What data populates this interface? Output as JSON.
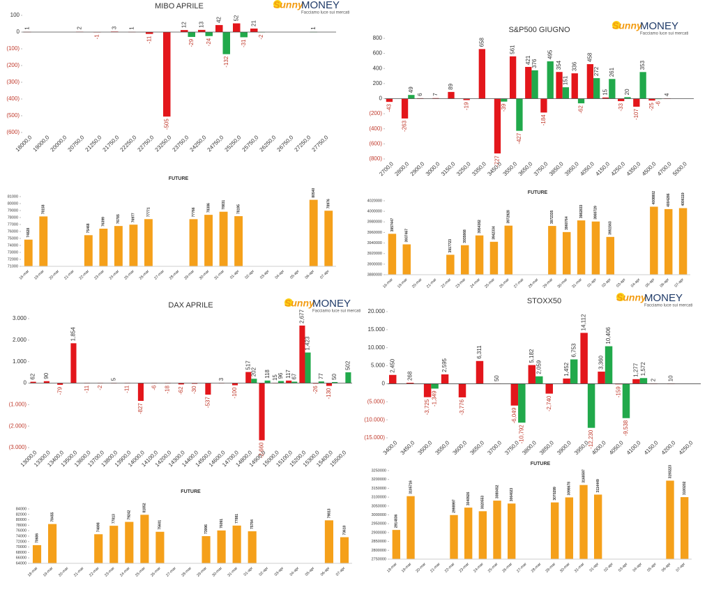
{
  "logo": {
    "brand": "Sunny",
    "brand_2": "MONEY",
    "tagline": "Facciamo luce sui mercati"
  },
  "chart_data": [
    {
      "type": "bar",
      "title": "MIBO APRILE",
      "categories": [
        "18000,0",
        "19000,0",
        "20000,0",
        "20750,0",
        "21250,0",
        "21750,0",
        "22250,0",
        "22750,0",
        "23250,0",
        "23750,0",
        "24250,0",
        "24750,0",
        "25250,0",
        "25750,0",
        "26250,0",
        "26750,0",
        "27250,0",
        "27750,0"
      ],
      "series": [
        {
          "name": "Call",
          "color": "#e3161b",
          "values": [
            1,
            null,
            null,
            2,
            -1,
            3,
            1,
            -11,
            -505,
            12,
            13,
            42,
            52,
            21,
            null,
            null,
            null,
            null
          ]
        },
        {
          "name": "Put",
          "color": "#21a94b",
          "values": [
            null,
            null,
            null,
            null,
            null,
            null,
            null,
            null,
            null,
            -29,
            -24,
            -132,
            -31,
            -2,
            null,
            null,
            1,
            null
          ]
        }
      ],
      "ylim": [
        -600,
        100
      ],
      "yticks": [
        100,
        0,
        {
          "value": -100,
          "label": "(100)"
        },
        {
          "value": -200,
          "label": "(200)"
        },
        {
          "value": -300,
          "label": "(300)"
        },
        {
          "value": -400,
          "label": "(400)"
        },
        {
          "value": -500,
          "label": "(500)"
        },
        {
          "value": -600,
          "label": "(600)"
        }
      ]
    },
    {
      "type": "bar",
      "title": "S&P500 GIUGNO",
      "categories": [
        "2700,0",
        "2800,0",
        "2900,0",
        "3000,0",
        "3150,0",
        "3250,0",
        "3350,0",
        "3450,0",
        "3550,0",
        "3650,0",
        "3750,0",
        "3850,0",
        "3950,0",
        "4050,0",
        "4150,0",
        "4250,0",
        "4350,0",
        "4500,0",
        "4700,0",
        "5000,0"
      ],
      "series": [
        {
          "name": "Call",
          "color": "#e3161b",
          "values": [
            -43,
            -263,
            6,
            7,
            89,
            -19,
            658,
            -727,
            561,
            421,
            -184,
            354,
            336,
            458,
            15,
            -33,
            -107,
            -25,
            4,
            null
          ]
        },
        {
          "name": "Put",
          "color": "#21a94b",
          "values": [
            null,
            49,
            null,
            null,
            null,
            null,
            null,
            -39,
            -427,
            376,
            495,
            151,
            -62,
            272,
            261,
            20,
            353,
            -6,
            null,
            null
          ]
        }
      ],
      "ylim": [
        -800,
        800
      ],
      "yticks": [
        800,
        600,
        400,
        200,
        0,
        {
          "value": -200,
          "label": "(200)"
        },
        {
          "value": -400,
          "label": "(400)"
        },
        {
          "value": -600,
          "label": "(600)"
        },
        {
          "value": -800,
          "label": "(800)"
        }
      ]
    },
    {
      "type": "bar",
      "title": "FUTURE",
      "color": "#f5a01a",
      "categories": [
        "16-mar",
        "19-mar",
        "20-mar",
        "21-mar",
        "22-mar",
        "23-mar",
        "24-mar",
        "25-mar",
        "26-mar",
        "27-mar",
        "28-mar",
        "29-mar",
        "30-mar",
        "31-mar",
        "01-apr",
        "02-apr",
        "03-apr",
        "04-apr",
        "05-apr",
        "06-apr",
        "07-apr"
      ],
      "values": [
        74828,
        78158,
        null,
        null,
        75468,
        76399,
        76785,
        76977,
        77771,
        null,
        null,
        77766,
        78386,
        78831,
        78195,
        null,
        null,
        null,
        null,
        80540,
        78976
      ],
      "ylim": [
        71000,
        81000
      ],
      "yticks": [
        71000,
        72000,
        73000,
        74000,
        75000,
        76000,
        77000,
        78000,
        79000,
        80000,
        81000
      ]
    },
    {
      "type": "bar",
      "title": "FUTURE",
      "color": "#f5a01a",
      "categories": [
        "16-mar",
        "19-mar",
        "20-mar",
        "21-mar",
        "22-mar",
        "23-mar",
        "24-mar",
        "25-mar",
        "26-mar",
        "27-mar",
        "28-mar",
        "29-mar",
        "30-mar",
        "31-mar",
        "01-apr",
        "02-apr",
        "03-apr",
        "04-apr",
        "05-apr",
        "06-apr",
        "07-apr"
      ],
      "values": [
        3957447,
        3937467,
        null,
        null,
        3917723,
        3935868,
        3954382,
        3942334,
        3972928,
        null,
        null,
        3972335,
        3960764,
        3982833,
        3980729,
        3951563,
        null,
        null,
        4008802,
        4004286,
        4006119
      ],
      "ylim": [
        3880000,
        4020000
      ],
      "yticks": [
        3880000,
        3900000,
        3920000,
        3940000,
        3960000,
        3980000,
        4000000,
        4020000
      ]
    },
    {
      "type": "bar",
      "title": "DAX APRILE",
      "categories": [
        "13000,0",
        "13300,0",
        "13400,0",
        "13500,0",
        "13600,0",
        "13700,0",
        "13800,0",
        "13900,0",
        "14000,0",
        "14100,0",
        "14200,0",
        "14300,0",
        "14400,0",
        "14500,0",
        "14600,0",
        "14700,0",
        "14800,0",
        "14900,0",
        "15000,0",
        "15100,0",
        "15200,0",
        "15300,0",
        "15400,0",
        "15500,0"
      ],
      "series": [
        {
          "name": "Call",
          "color": "#e3161b",
          "values": [
            62,
            90,
            -79,
            1854,
            -11,
            -2,
            5,
            -11,
            -827,
            -6,
            -18,
            -62,
            -30,
            -537,
            3,
            -100,
            517,
            -2660,
            15,
            117,
            2677,
            -26,
            -130,
            null
          ],
          "value_labels": [
            "62",
            "90",
            "-79",
            "1,854",
            "-11",
            "-2",
            "5",
            "-11",
            "-827",
            "-6",
            "-18",
            "-62",
            "-30",
            "-537",
            "3",
            "-100",
            "517",
            "-2,660",
            "15",
            "117",
            "2,677",
            "-26",
            "-130",
            null
          ]
        },
        {
          "name": "Put",
          "color": "#21a94b",
          "values": [
            null,
            null,
            null,
            null,
            null,
            null,
            null,
            null,
            null,
            null,
            null,
            null,
            null,
            null,
            null,
            null,
            202,
            118,
            96,
            67,
            1423,
            77,
            50,
            502
          ],
          "value_labels": [
            null,
            null,
            null,
            null,
            null,
            null,
            null,
            null,
            null,
            null,
            null,
            null,
            null,
            null,
            null,
            null,
            "202",
            "118",
            "96",
            "67",
            "1,423",
            "77",
            "50",
            "502"
          ]
        }
      ],
      "ylim": [
        -3000,
        3000
      ],
      "yticks": [
        {
          "value": 3000,
          "label": "3.000"
        },
        {
          "value": 2000,
          "label": "2.000"
        },
        {
          "value": 1000,
          "label": "1.000"
        },
        0,
        {
          "value": -1000,
          "label": "(1.000)"
        },
        {
          "value": -2000,
          "label": "(2.000)"
        },
        {
          "value": -3000,
          "label": "(3.000)"
        }
      ]
    },
    {
      "type": "bar",
      "title": "STOXX50",
      "categories": [
        "3400,0",
        "3450,0",
        "3500,0",
        "3550,0",
        "3600,0",
        "3650,0",
        "3700,0",
        "3750,0",
        "3800,0",
        "3850,0",
        "3900,0",
        "3950,0",
        "4000,0",
        "4050,0",
        "4100,0",
        "4150,0",
        "4200,0",
        "4250,0"
      ],
      "series": [
        {
          "name": "Call",
          "color": "#e3161b",
          "values": [
            2450,
            268,
            -3725,
            2595,
            -3776,
            6311,
            50,
            -6049,
            5182,
            -2740,
            1452,
            14112,
            3360,
            -159,
            1277,
            2,
            10,
            null
          ],
          "value_labels": [
            "2,450",
            "268",
            "-3,725",
            "2,595",
            "-3,776",
            "6,311",
            "50",
            "-6,049",
            "5,182",
            "-2,740",
            "1,452",
            "14,112",
            "3,360",
            "-159",
            "1,277",
            "2",
            "10",
            null
          ]
        },
        {
          "name": "Put",
          "color": "#21a94b",
          "values": [
            null,
            null,
            -1349,
            null,
            null,
            null,
            null,
            -10792,
            2059,
            null,
            6753,
            -12230,
            10406,
            -9538,
            1572,
            null,
            null,
            null
          ],
          "value_labels": [
            null,
            null,
            "-1,349",
            null,
            null,
            null,
            null,
            "-10,792",
            "2,059",
            null,
            "6,753",
            "-12,230",
            "10,406",
            "-9,538",
            "1,572",
            null,
            null,
            null
          ]
        }
      ],
      "ylim": [
        -15000,
        20000
      ],
      "yticks": [
        {
          "value": 20000,
          "label": "20.000"
        },
        {
          "value": 15000,
          "label": "15.000"
        },
        {
          "value": 10000,
          "label": "10.000"
        },
        {
          "value": 5000,
          "label": "5.000"
        },
        0,
        {
          "value": -5000,
          "label": "(5.000)"
        },
        {
          "value": -10000,
          "label": "(10.000)"
        },
        {
          "value": -15000,
          "label": "(15.000)"
        }
      ]
    },
    {
      "type": "bar",
      "title": "FUTURE",
      "color": "#f5a01a",
      "categories": [
        "18-mar",
        "19-mar",
        "20-mar",
        "21-mar",
        "22-mar",
        "23-mar",
        "24-mar",
        "25-mar",
        "26-mar",
        "27-mar",
        "28-mar",
        "29-mar",
        "30-mar",
        "31-mar",
        "01-apr",
        "02-apr",
        "03-apr",
        "04-apr",
        "05-apr",
        "06-apr",
        "07-apr"
      ],
      "values": [
        70686,
        78455,
        null,
        null,
        74698,
        77813,
        79242,
        81852,
        75601,
        null,
        null,
        73996,
        76091,
        77881,
        75784,
        null,
        null,
        null,
        null,
        79813,
        73610
      ],
      "ylim": [
        64000,
        84000
      ],
      "yticks": [
        64000,
        66000,
        68000,
        70000,
        72000,
        74000,
        76000,
        78000,
        80000,
        82000,
        84000
      ]
    },
    {
      "type": "bar",
      "title": "FUTURE",
      "color": "#f5a01a",
      "categories": [
        "18-mar",
        "19-mar",
        "20-mar",
        "21-mar",
        "22-mar",
        "23-mar",
        "24-mar",
        "25-mar",
        "26-mar",
        "27-mar",
        "28-mar",
        "29-mar",
        "30-mar",
        "31-mar",
        "01-apr",
        "02-apr",
        "03-apr",
        "04-apr",
        "05-apr",
        "06-apr",
        "07-apr"
      ],
      "values": [
        2914836,
        3105716,
        null,
        null,
        2998997,
        3040926,
        3020553,
        3080452,
        3064023,
        null,
        null,
        3070299,
        3098678,
        3168597,
        3114449,
        null,
        null,
        null,
        null,
        3193223,
        3100202
      ],
      "ylim": [
        2750000,
        3250000
      ],
      "yticks": [
        2750000,
        2800000,
        2850000,
        2900000,
        2950000,
        3000000,
        3050000,
        3100000,
        3150000,
        3200000,
        3250000
      ]
    }
  ]
}
